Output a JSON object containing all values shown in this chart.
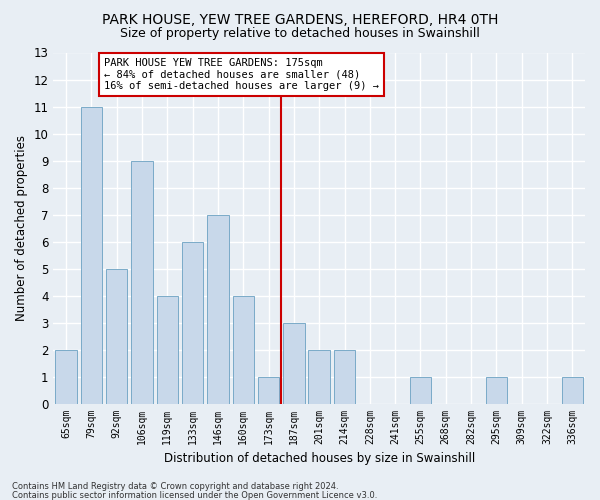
{
  "title1": "PARK HOUSE, YEW TREE GARDENS, HEREFORD, HR4 0TH",
  "title2": "Size of property relative to detached houses in Swainshill",
  "xlabel": "Distribution of detached houses by size in Swainshill",
  "ylabel": "Number of detached properties",
  "categories": [
    "65sqm",
    "79sqm",
    "92sqm",
    "106sqm",
    "119sqm",
    "133sqm",
    "146sqm",
    "160sqm",
    "173sqm",
    "187sqm",
    "201sqm",
    "214sqm",
    "228sqm",
    "241sqm",
    "255sqm",
    "268sqm",
    "282sqm",
    "295sqm",
    "309sqm",
    "322sqm",
    "336sqm"
  ],
  "values": [
    2,
    11,
    5,
    9,
    4,
    6,
    7,
    4,
    1,
    3,
    2,
    2,
    0,
    0,
    1,
    0,
    0,
    1,
    0,
    0,
    1
  ],
  "bar_color_normal": "#c8d8ea",
  "bar_color_edge": "#7aaac8",
  "ylim": [
    0,
    13
  ],
  "yticks": [
    0,
    1,
    2,
    3,
    4,
    5,
    6,
    7,
    8,
    9,
    10,
    11,
    12,
    13
  ],
  "legend_title": "PARK HOUSE YEW TREE GARDENS: 175sqm",
  "legend_line1": "← 84% of detached houses are smaller (48)",
  "legend_line2": "16% of semi-detached houses are larger (9) →",
  "footer1": "Contains HM Land Registry data © Crown copyright and database right 2024.",
  "footer2": "Contains public sector information licensed under the Open Government Licence v3.0.",
  "background_color": "#e8eef4",
  "plot_background": "#e8eef4",
  "grid_color": "#ffffff",
  "title_fontsize": 10,
  "subtitle_fontsize": 9
}
